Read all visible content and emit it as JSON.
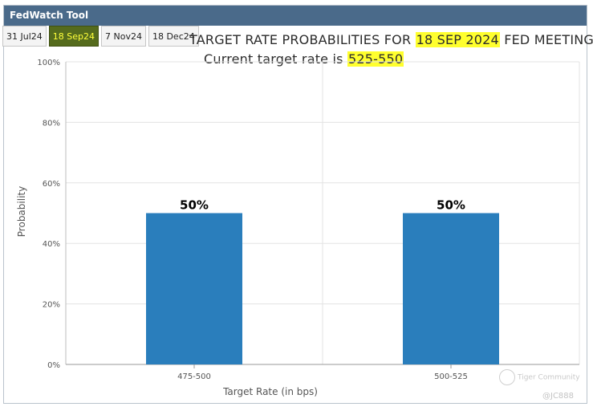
{
  "window": {
    "title": "FedWatch Tool"
  },
  "tabs": [
    {
      "label": "31 Jul24",
      "active": false
    },
    {
      "label": "18 Sep24",
      "active": true
    },
    {
      "label": "7 Nov24",
      "active": false
    },
    {
      "label": "18 Dec24",
      "active": false
    }
  ],
  "heading": {
    "prefix": "TARGET RATE PROBABILITIES FOR ",
    "date": "18 SEP 2024",
    "suffix": " FED MEETING"
  },
  "current_rate": {
    "prefix": "Current target rate is ",
    "value": "525-550"
  },
  "colors": {
    "bar": "#2a7ebc",
    "highlight": "#ffff2e",
    "titlebar": "#4a6a8a"
  },
  "chart_data": {
    "type": "bar",
    "categories": [
      "475-500",
      "500-525"
    ],
    "values": [
      50,
      50
    ],
    "data_labels": [
      "50%",
      "50%"
    ],
    "ylabel": "Probability",
    "xlabel": "Target Rate (in bps)",
    "ylim": [
      0,
      100
    ],
    "yticks": [
      "0%",
      "20%",
      "40%",
      "60%",
      "80%",
      "100%"
    ],
    "grid": true
  },
  "watermark": {
    "text": "Tiger Community",
    "handle": "@JC888"
  }
}
